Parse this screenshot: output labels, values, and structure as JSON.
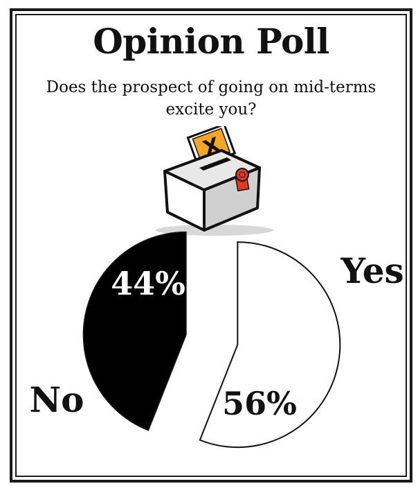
{
  "chart_data": {
    "type": "pie",
    "title": "Opinion Poll",
    "subtitle": "Does the prospect of going on mid-terms excite you?",
    "categories": [
      "Yes",
      "No"
    ],
    "values": [
      56,
      44
    ],
    "value_labels": [
      "56%",
      "44%"
    ],
    "exploded": true,
    "colors": {
      "Yes": "#ffffff",
      "No": "#000000"
    },
    "legend": "none"
  },
  "icons": {
    "ballot": "ballot-box-icon"
  }
}
